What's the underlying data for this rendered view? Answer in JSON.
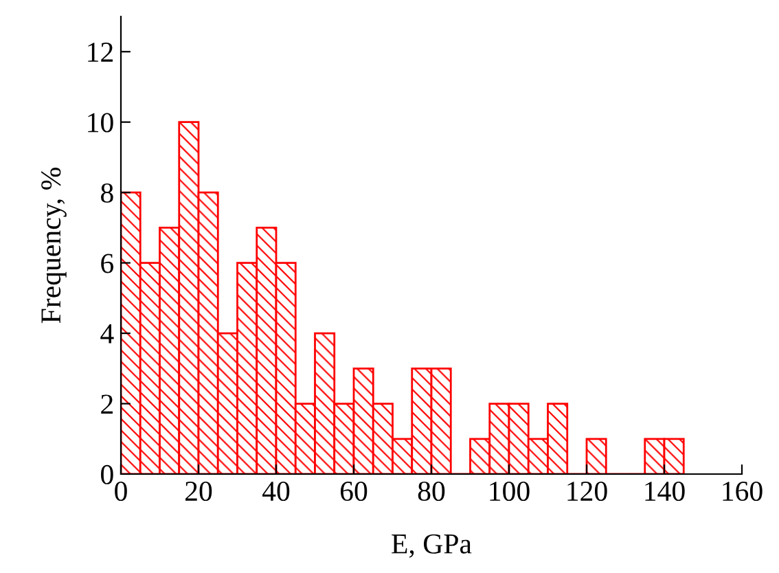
{
  "chart_data": {
    "type": "histogram",
    "xlabel": "E, GPa",
    "ylabel": "Frequency, %",
    "bins": [
      0,
      5,
      10,
      15,
      20,
      25,
      30,
      35,
      40,
      45,
      50,
      55,
      60,
      65,
      70,
      75,
      80,
      85,
      90,
      95,
      100,
      105,
      110,
      115,
      120,
      125,
      130,
      135,
      140,
      145
    ],
    "values": [
      8,
      6,
      7,
      10,
      8,
      4,
      6,
      7,
      6,
      2,
      4,
      2,
      3,
      2,
      1,
      3,
      3,
      0,
      1,
      2,
      2,
      1,
      2,
      0,
      1,
      0,
      0,
      1,
      1
    ],
    "color": "#ff0000",
    "xlim": [
      0,
      160
    ],
    "xticks": [
      0,
      20,
      40,
      60,
      80,
      100,
      120,
      140,
      160
    ],
    "ylim": [
      0,
      13
    ],
    "yticks": [
      0,
      2,
      4,
      6,
      8,
      10,
      12
    ],
    "grid": false
  }
}
